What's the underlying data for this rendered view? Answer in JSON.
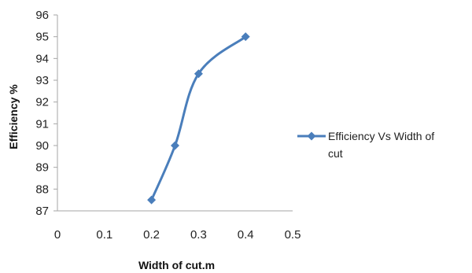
{
  "chart_data": {
    "type": "line",
    "title": "",
    "xlabel": "Width of cut.m",
    "ylabel": "Efficiency %",
    "xlim": [
      0,
      0.5
    ],
    "ylim": [
      87,
      96
    ],
    "x_ticks": [
      "0",
      "0.1",
      "0.2",
      "0.3",
      "0.4",
      "0.5"
    ],
    "y_ticks": [
      "87",
      "88",
      "89",
      "90",
      "91",
      "92",
      "93",
      "94",
      "95",
      "96"
    ],
    "grid": false,
    "legend_position": "right",
    "series": [
      {
        "name": "Efficiency Vs Width of cut",
        "legend_lines": [
          "Efficiency Vs Width of",
          "cut"
        ],
        "color": "#4a7ebb",
        "marker": "diamond",
        "smooth": true,
        "x": [
          0.2,
          0.25,
          0.3,
          0.4
        ],
        "y": [
          87.5,
          90.0,
          93.3,
          95.0
        ]
      }
    ]
  }
}
